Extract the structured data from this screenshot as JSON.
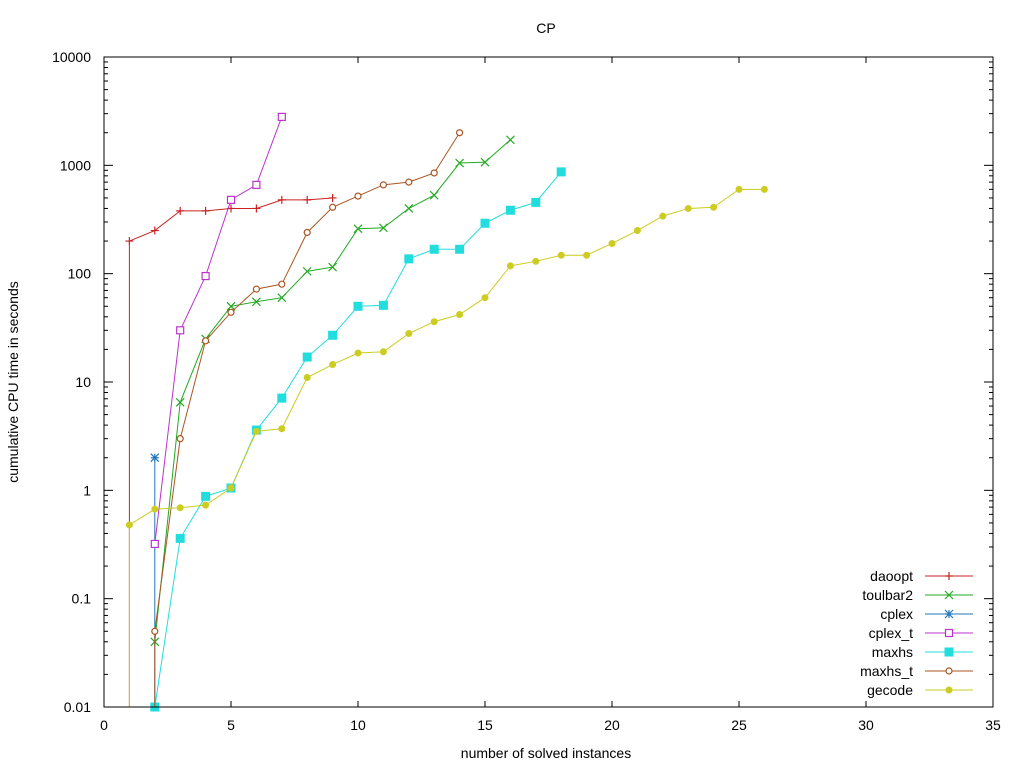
{
  "chart_data": {
    "type": "line",
    "title": "CP",
    "xlabel": "number of solved instances",
    "ylabel": "cumulative CPU time in seconds",
    "xlim": [
      0,
      35
    ],
    "ylim": [
      0.01,
      10000
    ],
    "yscale": "log",
    "grid": false,
    "legend_position": "bottom-right",
    "x_ticks": [
      0,
      5,
      10,
      15,
      20,
      25,
      30,
      35
    ],
    "x_tick_labels": [
      "0",
      "5",
      "10",
      "15",
      "20",
      "25",
      "30",
      "35"
    ],
    "y_ticks": [
      0.01,
      0.1,
      1,
      10,
      100,
      1000,
      10000
    ],
    "y_tick_labels": [
      "0.01",
      "0.1",
      "1",
      "10",
      "100",
      "1000",
      "10000"
    ],
    "series": [
      {
        "name": "daoopt",
        "color": "#cc2222",
        "marker": "plus",
        "drop_to_floor": true,
        "x": [
          1,
          2,
          3,
          4,
          5,
          6,
          7,
          8,
          9
        ],
        "y": [
          200,
          250,
          380,
          380,
          400,
          400,
          480,
          480,
          500
        ]
      },
      {
        "name": "toulbar2",
        "color": "#22aa22",
        "marker": "x",
        "drop_to_floor": false,
        "x": [
          2,
          3,
          4,
          5,
          6,
          7,
          8,
          9,
          10,
          11,
          12,
          13,
          14,
          15,
          16
        ],
        "y": [
          0.04,
          6.5,
          25,
          50,
          55,
          60,
          105,
          115,
          260,
          265,
          400,
          530,
          1050,
          1070,
          1720
        ]
      },
      {
        "name": "cplex",
        "color": "#2277bb",
        "marker": "star",
        "drop_to_floor": true,
        "x": [
          2
        ],
        "y": [
          2
        ]
      },
      {
        "name": "cplex_t",
        "color": "#bb33cc",
        "marker": "opensquare",
        "drop_to_floor": false,
        "x": [
          2,
          3,
          4,
          5,
          6,
          7
        ],
        "y": [
          0.32,
          30,
          95,
          480,
          660,
          2800
        ]
      },
      {
        "name": "maxhs",
        "color": "#22dddd",
        "marker": "filledsquare",
        "drop_to_floor": false,
        "x": [
          2,
          3,
          4,
          5,
          6,
          7,
          8,
          9,
          10,
          11,
          12,
          13,
          14,
          15,
          16,
          17,
          18
        ],
        "y": [
          0.01,
          0.36,
          0.88,
          1.05,
          3.6,
          7.1,
          17,
          27,
          50,
          51,
          137,
          168,
          168,
          292,
          385,
          455,
          870
        ]
      },
      {
        "name": "maxhs_t",
        "color": "#aa5522",
        "marker": "opencircle",
        "drop_to_floor": true,
        "x": [
          2,
          3,
          4,
          5,
          6,
          7,
          8,
          9,
          10,
          11,
          12,
          13,
          14
        ],
        "y": [
          0.05,
          3,
          24,
          44,
          72,
          80,
          240,
          410,
          520,
          660,
          700,
          850,
          2000
        ]
      },
      {
        "name": "gecode",
        "color": "#cccc22",
        "marker": "filledcircle",
        "drop_to_floor": true,
        "x": [
          1,
          2,
          3,
          4,
          5,
          6,
          7,
          8,
          9,
          10,
          11,
          12,
          13,
          14,
          15,
          16,
          17,
          18,
          19,
          20,
          21,
          22,
          23,
          24,
          25,
          26
        ],
        "y": [
          0.48,
          0.67,
          0.69,
          0.73,
          1.05,
          3.5,
          3.7,
          11,
          14.5,
          18.5,
          19,
          28,
          36,
          42,
          60,
          118,
          130,
          148,
          148,
          190,
          250,
          340,
          400,
          410,
          600,
          600
        ]
      }
    ]
  }
}
